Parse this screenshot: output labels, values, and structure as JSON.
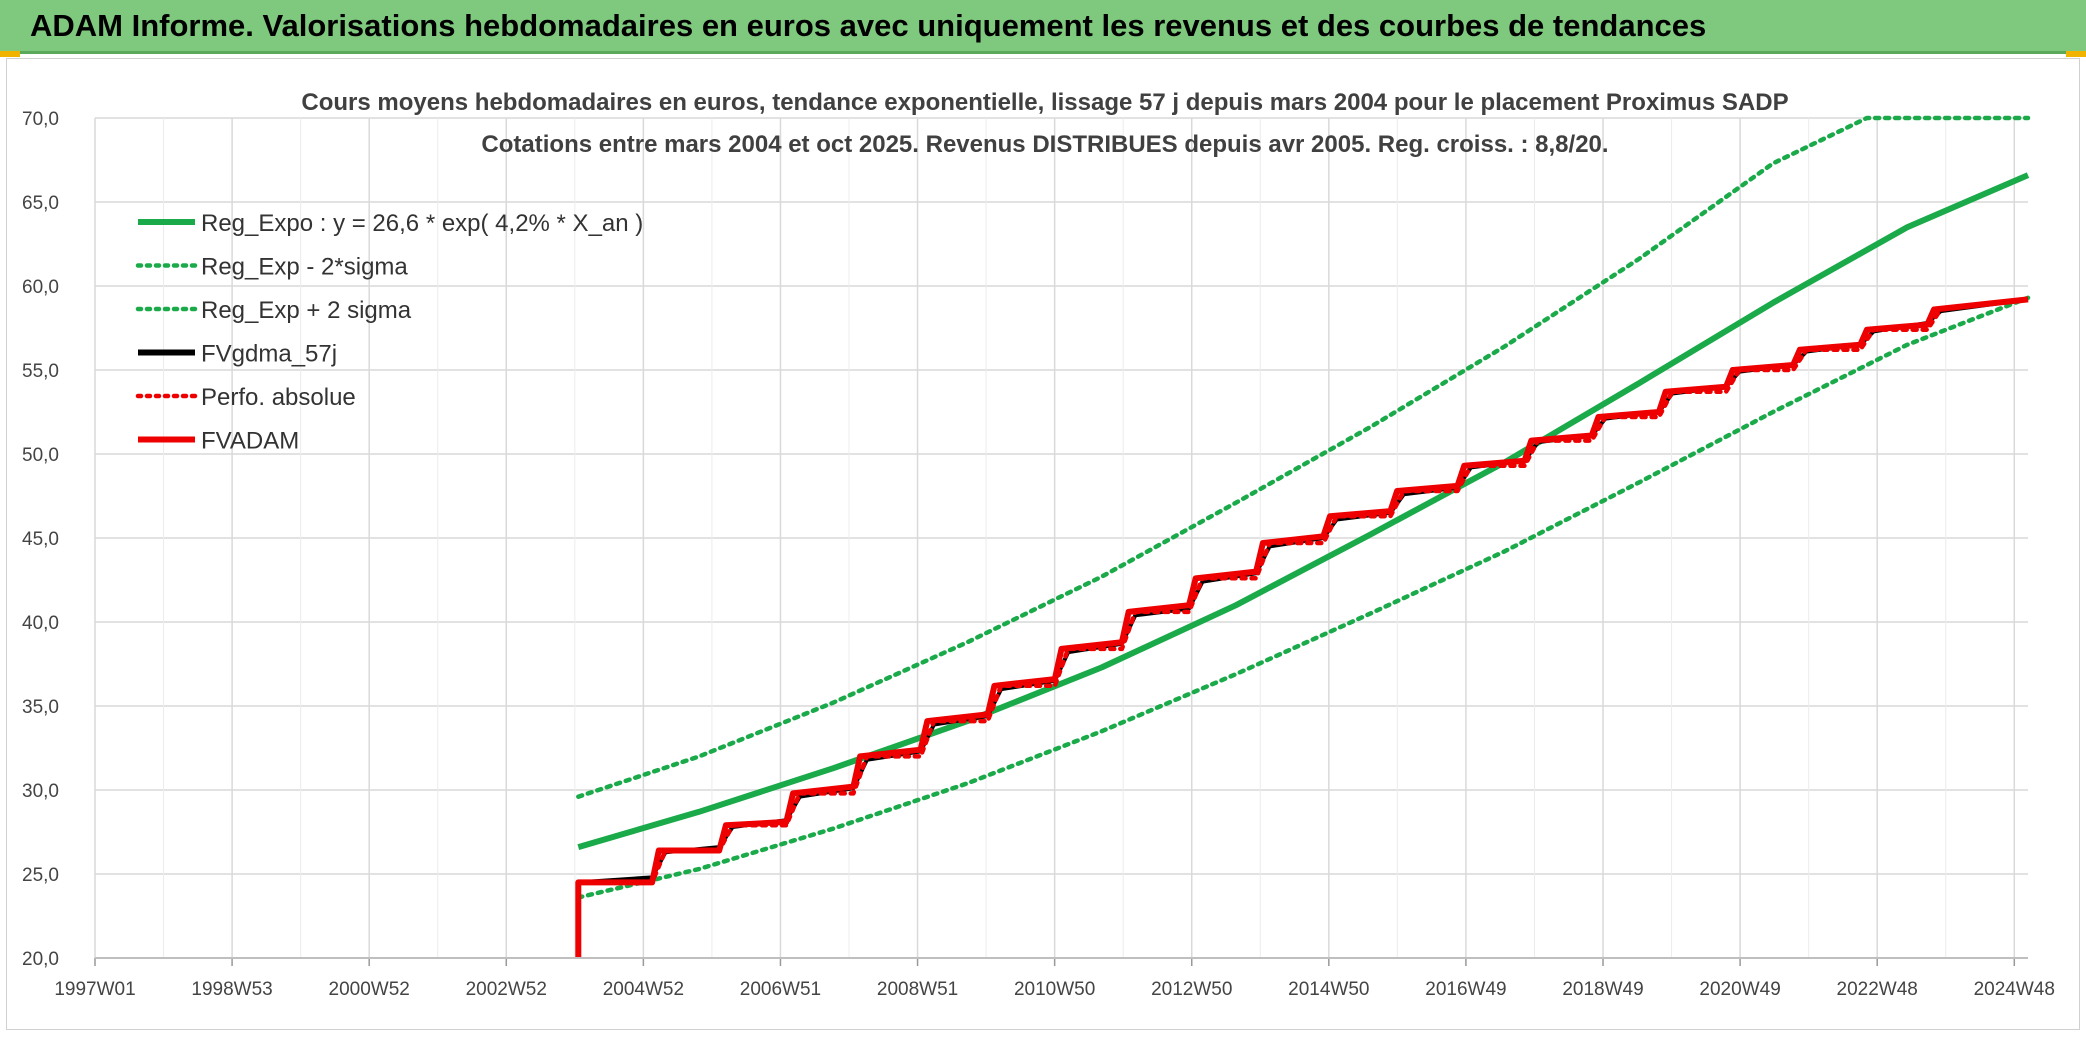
{
  "banner": {
    "title": "ADAM Informe. Valorisations hebdomadaires en euros avec uniquement les revenus et des courbes de tendances"
  },
  "colors": {
    "banner_bg": "#7fc97f",
    "green": "#1aaa4a",
    "red": "#ee0000",
    "black": "#000000",
    "grid": "#d9d9d9"
  },
  "chart_data": {
    "type": "line",
    "title_lines": [
      "Cours moyens hebdomadaires en euros, tendance exponentielle, lissage 57 j depuis mars 2004 pour le placement Proximus SADP",
      "Cotations entre mars 2004 et oct 2025. Revenus DISTRIBUES depuis avr 2005. Reg. croiss. : 8,8/20."
    ],
    "x_tick_labels": [
      "1997W01",
      "1998W53",
      "2000W52",
      "2002W52",
      "2004W52",
      "2006W51",
      "2008W51",
      "2010W50",
      "2012W50",
      "2014W50",
      "2016W49",
      "2018W49",
      "2020W49",
      "2022W48",
      "2024W48"
    ],
    "x_range": [
      1997.0,
      2025.8
    ],
    "y_range": [
      20,
      70
    ],
    "y_ticks": [
      20,
      25,
      30,
      35,
      40,
      45,
      50,
      55,
      60,
      65,
      70
    ],
    "y_tick_labels": [
      "20,0",
      "25,0",
      "30,0",
      "35,0",
      "40,0",
      "45,0",
      "50,0",
      "55,0",
      "60,0",
      "65,0",
      "70,0"
    ],
    "grid": true,
    "legend_position": "top-left",
    "legend": [
      {
        "label": "Reg_Expo : y = 26,6 * exp( 4,2% *  X_an )",
        "color": "#1aaa4a",
        "style": "solid"
      },
      {
        "label": "Reg_Exp - 2*sigma",
        "color": "#1aaa4a",
        "style": "dotted"
      },
      {
        "label": "Reg_Exp + 2 sigma",
        "color": "#1aaa4a",
        "style": "dotted"
      },
      {
        "label": "FVgdma_57j",
        "color": "#000000",
        "style": "solid"
      },
      {
        "label": "Perfo. absolue",
        "color": "#ee0000",
        "style": "dotted"
      },
      {
        "label": "FVADAM",
        "color": "#ee0000",
        "style": "solid"
      }
    ],
    "series": [
      {
        "name": "Reg_Expo : y = 26,6 * exp( 4,2% *  X_an )",
        "x": [
          2004.2,
          2006.0,
          2008.0,
          2010.0,
          2012.0,
          2014.0,
          2016.0,
          2018.0,
          2020.0,
          2022.0,
          2024.0,
          2025.8
        ],
        "y": [
          26.6,
          28.7,
          31.3,
          34.1,
          37.3,
          41.0,
          45.2,
          49.5,
          54.2,
          59.0,
          63.5,
          66.6
        ]
      },
      {
        "name": "Reg_Exp - 2*sigma",
        "x": [
          2004.2,
          2006.0,
          2008.0,
          2010.0,
          2012.0,
          2014.0,
          2016.0,
          2018.0,
          2020.0,
          2022.0,
          2024.0,
          2025.8
        ],
        "y": [
          23.6,
          25.3,
          27.7,
          30.4,
          33.5,
          36.9,
          40.5,
          44.2,
          48.3,
          52.5,
          56.5,
          59.3
        ]
      },
      {
        "name": "Reg_Exp + 2 sigma",
        "x": [
          2004.2,
          2006.0,
          2008.0,
          2010.0,
          2012.0,
          2014.0,
          2016.0,
          2018.0,
          2020.0,
          2022.0,
          2023.4,
          2025.8
        ],
        "y": [
          29.6,
          32.0,
          35.2,
          38.8,
          42.7,
          47.1,
          51.6,
          56.4,
          61.6,
          67.3,
          70.0,
          70.0
        ]
      },
      {
        "name": "FVgdma_57j",
        "x": [
          2004.2,
          2005.3,
          2005.5,
          2006.3,
          2006.5,
          2007.3,
          2007.5,
          2008.3,
          2008.5,
          2009.3,
          2009.5,
          2010.3,
          2010.5,
          2011.3,
          2011.5,
          2012.3,
          2012.5,
          2013.3,
          2013.5,
          2014.3,
          2014.5,
          2015.3,
          2015.5,
          2016.3,
          2016.5,
          2017.3,
          2017.5,
          2018.3,
          2018.5,
          2019.3,
          2019.5,
          2020.3,
          2020.5,
          2021.3,
          2021.5,
          2022.3,
          2022.5,
          2023.3,
          2023.5,
          2024.3,
          2024.5,
          2025.8
        ],
        "y": [
          24.5,
          24.8,
          26.3,
          26.6,
          27.8,
          28.2,
          29.6,
          30.1,
          31.8,
          32.3,
          33.9,
          34.4,
          36.0,
          36.5,
          38.2,
          38.7,
          40.4,
          40.8,
          42.4,
          42.9,
          44.5,
          45.0,
          46.1,
          46.5,
          47.6,
          48.0,
          49.2,
          49.6,
          50.7,
          51.1,
          52.1,
          52.5,
          53.6,
          54.0,
          54.9,
          55.3,
          56.1,
          56.5,
          57.3,
          57.8,
          58.5,
          59.2
        ]
      },
      {
        "name": "Perfo. absolue",
        "x": [
          2004.2,
          2005.3,
          2005.5,
          2006.3,
          2006.5,
          2007.3,
          2007.5,
          2008.3,
          2008.5,
          2009.3,
          2009.5,
          2010.3,
          2010.5,
          2011.3,
          2011.5,
          2012.3,
          2012.5,
          2013.3,
          2013.5,
          2014.3,
          2014.5,
          2015.3,
          2015.5,
          2016.3,
          2016.5,
          2017.3,
          2017.5,
          2018.3,
          2018.5,
          2019.3,
          2019.5,
          2020.3,
          2020.5,
          2021.3,
          2021.5,
          2022.3,
          2022.5,
          2023.3,
          2023.5,
          2024.3,
          2024.5,
          2025.8
        ],
        "y": [
          24.5,
          24.5,
          26.4,
          26.4,
          27.9,
          27.9,
          29.8,
          29.8,
          32.0,
          32.0,
          34.1,
          34.1,
          36.2,
          36.2,
          38.4,
          38.4,
          40.6,
          40.6,
          42.6,
          42.6,
          44.7,
          44.7,
          46.3,
          46.3,
          47.8,
          47.8,
          49.3,
          49.3,
          50.8,
          50.8,
          52.2,
          52.2,
          53.7,
          53.7,
          55.0,
          55.0,
          56.2,
          56.2,
          57.4,
          57.4,
          58.6,
          59.2
        ]
      },
      {
        "name": "FVADAM",
        "x": [
          2004.2,
          2004.2,
          2005.3,
          2005.4,
          2006.3,
          2006.4,
          2007.3,
          2007.4,
          2008.3,
          2008.4,
          2009.3,
          2009.4,
          2010.3,
          2010.4,
          2011.3,
          2011.4,
          2012.3,
          2012.4,
          2013.3,
          2013.4,
          2014.3,
          2014.4,
          2015.3,
          2015.4,
          2016.3,
          2016.4,
          2017.3,
          2017.4,
          2018.3,
          2018.4,
          2019.3,
          2019.4,
          2020.3,
          2020.4,
          2021.3,
          2021.4,
          2022.3,
          2022.4,
          2023.3,
          2023.4,
          2024.3,
          2024.4,
          2025.8
        ],
        "y": [
          20.0,
          24.5,
          24.5,
          26.4,
          26.4,
          27.9,
          28.1,
          29.8,
          30.2,
          32.0,
          32.4,
          34.1,
          34.5,
          36.2,
          36.6,
          38.4,
          38.8,
          40.6,
          41.0,
          42.6,
          43.0,
          44.7,
          45.1,
          46.3,
          46.6,
          47.8,
          48.1,
          49.3,
          49.6,
          50.8,
          51.1,
          52.2,
          52.5,
          53.7,
          54.0,
          55.0,
          55.3,
          56.2,
          56.5,
          57.4,
          57.7,
          58.6,
          59.2
        ]
      }
    ]
  }
}
